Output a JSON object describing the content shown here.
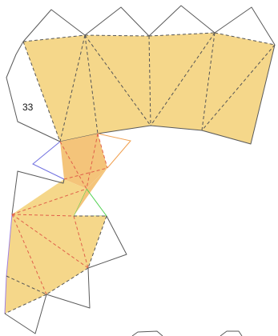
{
  "diagram": {
    "label": "33",
    "colors": {
      "face_fill": "#f5d78a",
      "cut_line": "#5a5a5a",
      "fold_dashed": "#555555",
      "fold_dashed_red": "#e0604a",
      "edge_blue": "#7070e0",
      "edge_orange": "#f0a050",
      "edge_green": "#50d050"
    }
  }
}
